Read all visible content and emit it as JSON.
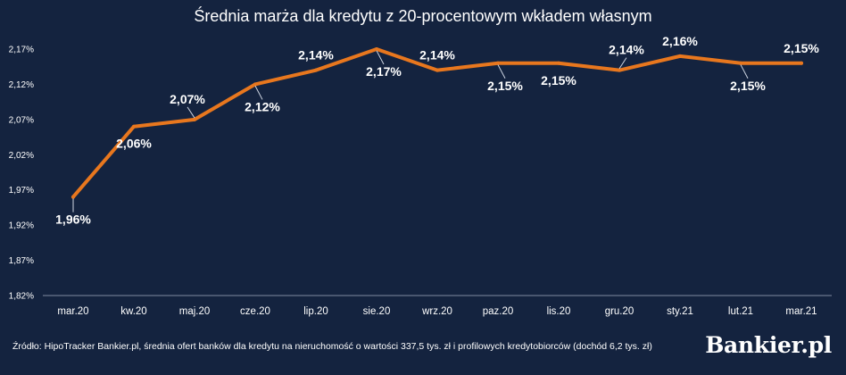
{
  "chart_data": {
    "type": "line",
    "title": "Średnia marża dla kredytu z 20-procentowym wkładem własnym",
    "categories": [
      "mar.20",
      "kw.20",
      "maj.20",
      "cze.20",
      "lip.20",
      "sie.20",
      "wrz.20",
      "paz.20",
      "lis.20",
      "gru.20",
      "sty.21",
      "lut.21",
      "mar.21"
    ],
    "series": [
      {
        "values": [
          1.96,
          2.06,
          2.07,
          2.12,
          2.14,
          2.17,
          2.14,
          2.15,
          2.15,
          2.14,
          2.16,
          2.15,
          2.15
        ],
        "labels": [
          "1,96%",
          "2,06%",
          "2,07%",
          "2,12%",
          "2,14%",
          "2,17%",
          "2,14%",
          "2,15%",
          "2,15%",
          "2,14%",
          "2,16%",
          "2,15%",
          "2,15%"
        ],
        "color": "#e8771e"
      }
    ],
    "yticks": [
      1.82,
      1.87,
      1.92,
      1.97,
      2.02,
      2.07,
      2.12,
      2.17
    ],
    "ytick_labels": [
      "1,82%",
      "1,87%",
      "1,92%",
      "1,97%",
      "2,02%",
      "2,07%",
      "2,12%",
      "2,17%"
    ],
    "ylim": [
      1.82,
      2.17
    ],
    "grid": false,
    "xlabel": "",
    "ylabel": ""
  },
  "source": "Źródło: HipoTracker Bankier.pl, średnia ofert banków dla kredytu na nieruchomość o wartości 337,5 tys. zł i profilowych kredytobiorców (dochód 6,2 tys. zł)",
  "logo": "Bankier.pl",
  "colors": {
    "background": "#14233f",
    "line": "#e8771e",
    "axis": "#7f8ba0"
  }
}
